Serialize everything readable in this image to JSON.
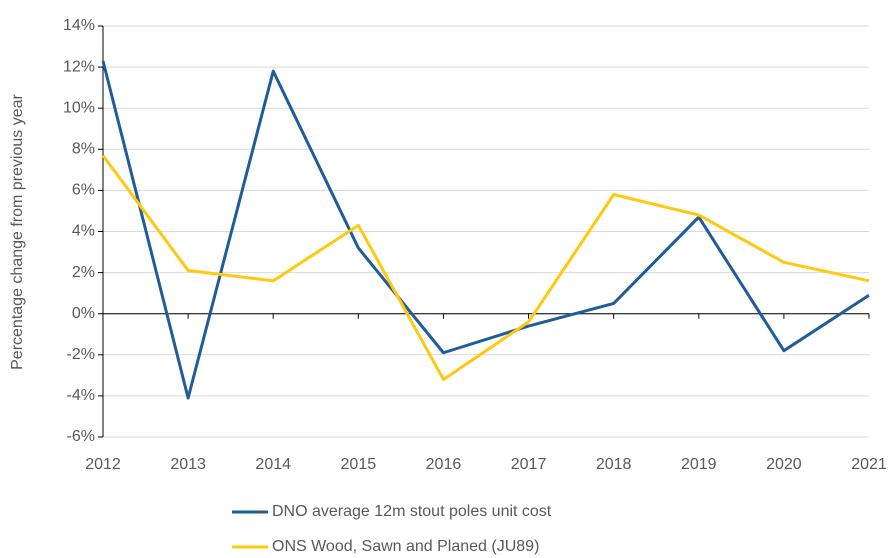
{
  "chart_data": {
    "type": "line",
    "y_label": "Percentage change from previous year",
    "x": [
      2012,
      2013,
      2014,
      2015,
      2016,
      2017,
      2018,
      2019,
      2020,
      2021
    ],
    "xlim": [
      2012,
      2021
    ],
    "xticks": [
      2012,
      2013,
      2014,
      2015,
      2016,
      2017,
      2018,
      2019,
      2020,
      2021
    ],
    "ylim": [
      -6,
      14
    ],
    "yticks": [
      {
        "value": -6,
        "label": "-6%"
      },
      {
        "value": -4,
        "label": "-4%"
      },
      {
        "value": -2,
        "label": "-2%"
      },
      {
        "value": 0,
        "label": "0%"
      },
      {
        "value": 2,
        "label": "2%"
      },
      {
        "value": 4,
        "label": "4%"
      },
      {
        "value": 6,
        "label": "6%"
      },
      {
        "value": 8,
        "label": "8%"
      },
      {
        "value": 10,
        "label": "10%"
      },
      {
        "value": 12,
        "label": "12%"
      },
      {
        "value": 14,
        "label": "14%"
      }
    ],
    "grid": true,
    "legend": "bottom",
    "series": [
      {
        "name": "DNO average 12m stout poles unit cost",
        "color": "#1f5c99",
        "values": [
          12.3,
          -4.1,
          11.8,
          3.2,
          -1.9,
          -0.6,
          0.5,
          4.7,
          -1.8,
          0.9
        ]
      },
      {
        "name": "ONS Wood, Sawn and Planed (JU89)",
        "color": "#ffc90e",
        "values": [
          7.7,
          2.1,
          1.6,
          4.3,
          -3.2,
          -0.4,
          5.8,
          4.8,
          2.5,
          1.6
        ]
      }
    ]
  }
}
